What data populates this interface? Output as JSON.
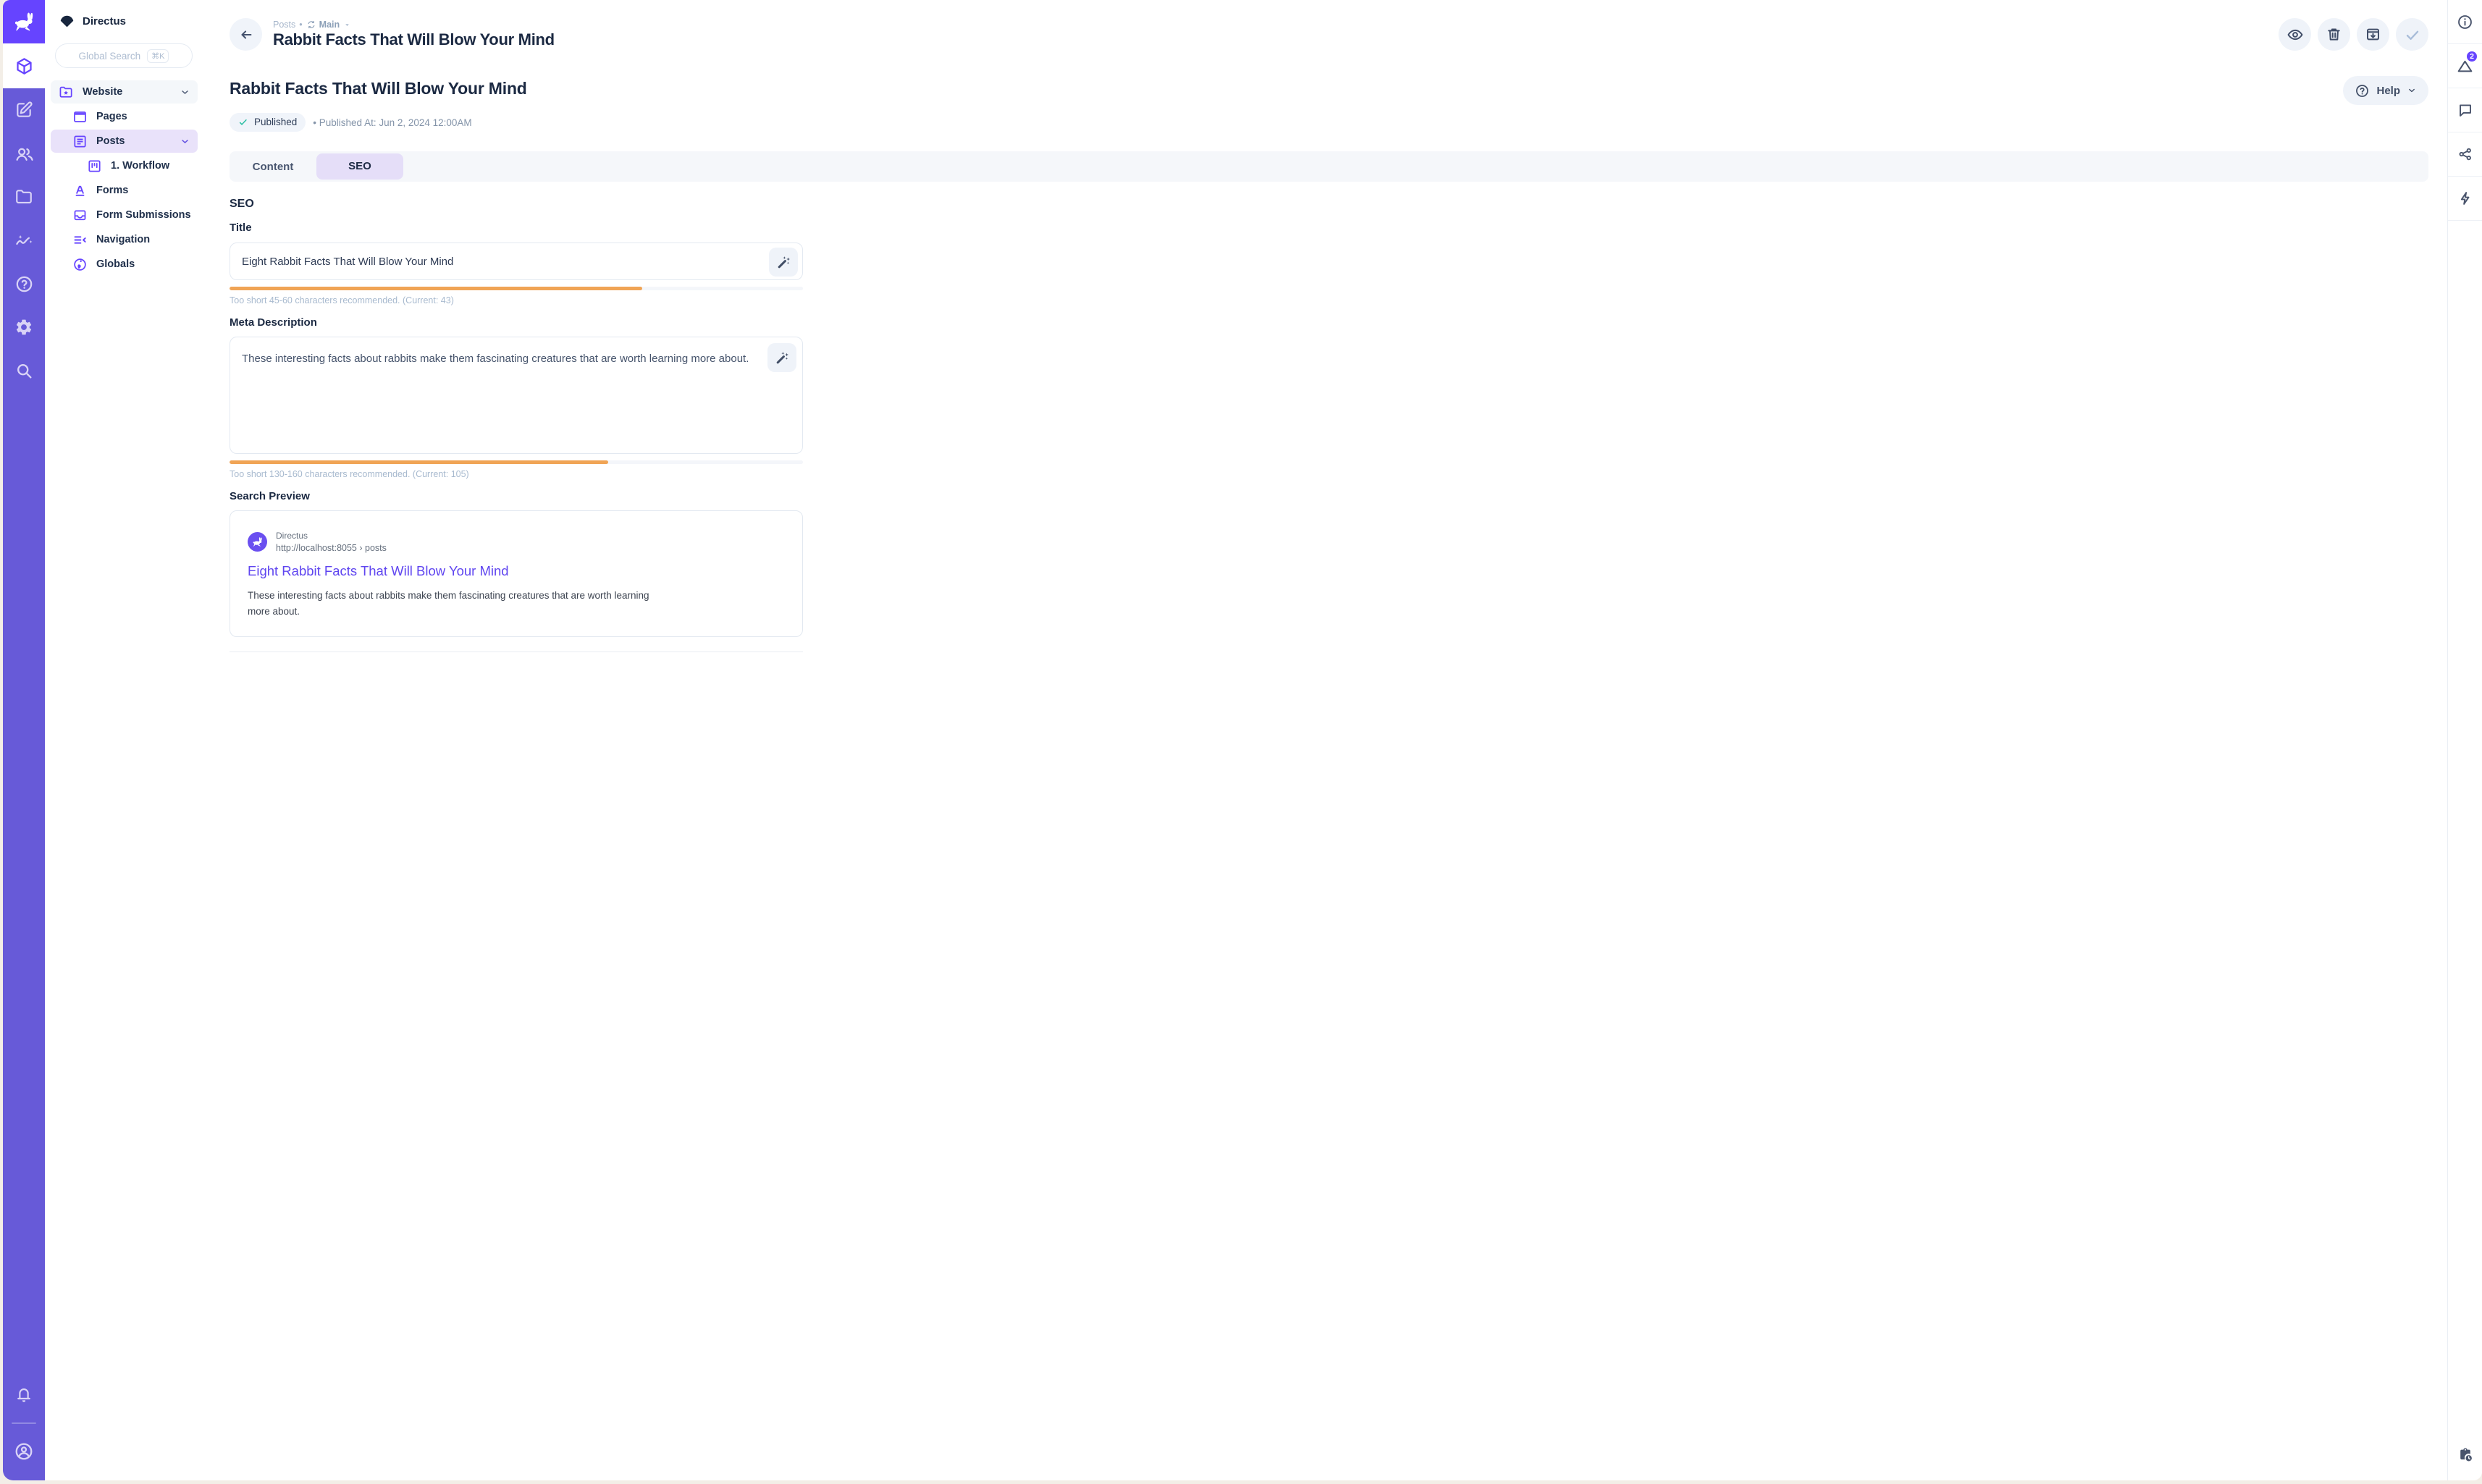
{
  "colors": {
    "primary": "#6644FF",
    "module_bar": "#675AD8",
    "active_tint": "#E9E2FA",
    "warning": "#F0A455",
    "success": "#2BBFA3",
    "link": "#5F45F0"
  },
  "sidebar": {
    "project_name": "Directus",
    "search": {
      "placeholder": "Global Search",
      "shortcut": "⌘K"
    },
    "nav": [
      {
        "label": "Website"
      },
      {
        "label": "Pages"
      },
      {
        "label": "Posts"
      },
      {
        "label": "1. Workflow"
      },
      {
        "label": "Forms"
      },
      {
        "label": "Form Submissions"
      },
      {
        "label": "Navigation"
      },
      {
        "label": "Globals"
      }
    ]
  },
  "header": {
    "breadcrumb": {
      "section": "Posts",
      "dot": "•",
      "version": "Main"
    },
    "title": "Rabbit Facts That Will Blow Your Mind"
  },
  "content": {
    "item_title": "Rabbit Facts That Will Blow Your Mind",
    "status": {
      "label": "Published"
    },
    "published_at": "• Published At: Jun 2, 2024 12:00AM",
    "help_label": "Help",
    "tabs": [
      {
        "label": "Content"
      },
      {
        "label": "SEO"
      }
    ],
    "seo": {
      "section_label": "SEO",
      "title_field": {
        "label": "Title",
        "value": "Eight Rabbit Facts That Will Blow Your Mind",
        "progress_pct": 72,
        "hint": "Too short 45-60 characters recommended. (Current: 43)"
      },
      "meta_field": {
        "label": "Meta Description",
        "value": "These interesting facts about rabbits make them fascinating creatures that are worth learning more about.",
        "progress_pct": 66,
        "hint": "Too short 130-160 characters recommended. (Current: 105)"
      },
      "preview": {
        "label": "Search Preview",
        "site": "Directus",
        "url": "http://localhost:8055 › posts",
        "title": "Eight Rabbit Facts That Will Blow Your Mind",
        "description": "These interesting facts about rabbits make them fascinating creatures that are worth learning more about."
      }
    }
  },
  "right_sidebar": {
    "notifications_count": "2"
  },
  "icon_names": [
    "directus-rabbit",
    "box",
    "edit",
    "users",
    "folder",
    "insights",
    "help-circle",
    "gear",
    "search",
    "bell",
    "user-circle",
    "folder-star",
    "browser",
    "article",
    "kanban",
    "letter-a",
    "inbox",
    "list-collapse",
    "globe",
    "back-arrow",
    "version-sync",
    "caret-down",
    "eye",
    "trash",
    "archive",
    "check",
    "wand",
    "info",
    "revisions-triangle",
    "comment",
    "share",
    "bolt",
    "clipboard-clock"
  ]
}
